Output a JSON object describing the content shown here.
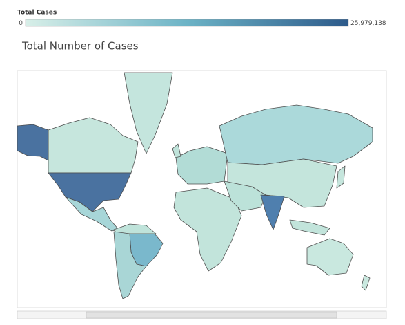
{
  "legend": {
    "title": "Total Cases",
    "range": [
      0,
      {
        "value": 25979138,
        "label": "25,979,138"
      }
    ]
  },
  "title": "Total Number of Cases"
}
